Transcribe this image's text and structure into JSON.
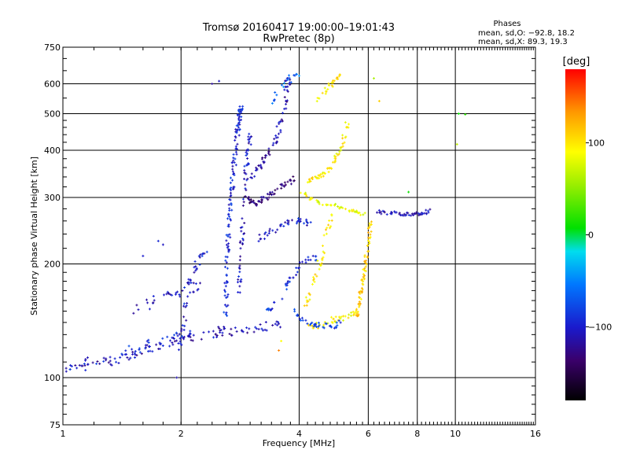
{
  "chart_data": {
    "type": "scatter",
    "title": "Tromsø 20160417 19:00:00–19:01:43",
    "subtitle": "RwPretec (8p)",
    "xlabel": "Frequency [MHz]",
    "ylabel": "Stationary phase Virtual Height [km]",
    "x_scale": "log",
    "y_scale": "log",
    "xlim": [
      1,
      16
    ],
    "ylim": [
      75,
      750
    ],
    "x_ticks": [
      "1",
      "2",
      "4",
      "6",
      "8",
      "10",
      "16"
    ],
    "x_tick_values": [
      1,
      2,
      4,
      6,
      8,
      10,
      16
    ],
    "y_ticks": [
      "75",
      "100",
      "200",
      "300",
      "400",
      "500",
      "600",
      "750"
    ],
    "y_tick_values": [
      75,
      100,
      200,
      300,
      400,
      500,
      600,
      750
    ],
    "grid": true,
    "stats": {
      "header": "Phases",
      "line1": "mean, sd,O: −92.8, 18.2",
      "line2": "mean, sd,X:  89.3, 19.3"
    },
    "colorbar": {
      "label": "[deg]",
      "range": [
        -180,
        180
      ],
      "ticks": [
        "100",
        "0",
        "−100"
      ],
      "tick_values": [
        100,
        0,
        -100
      ]
    },
    "traces": [
      {
        "name": "",
        "phase": -110,
        "spread": 0.05,
        "density": 12,
        "points": [
          [
            1.0,
            104
          ],
          [
            1.2,
            108
          ],
          [
            1.4,
            113
          ],
          [
            1.6,
            118
          ],
          [
            1.8,
            122
          ],
          [
            2.0,
            126
          ],
          [
            2.2,
            129
          ],
          [
            2.5,
            132
          ],
          [
            2.8,
            134
          ],
          [
            3.2,
            136
          ],
          [
            3.6,
            137
          ]
        ]
      },
      {
        "name": "",
        "phase": -95,
        "spread": 0.06,
        "density": 10,
        "points": [
          [
            1.05,
            106
          ],
          [
            1.3,
            112
          ],
          [
            1.6,
            120
          ],
          [
            1.9,
            127
          ],
          [
            2.1,
            131
          ]
        ]
      },
      {
        "name": "",
        "phase": -105,
        "spread": 0.05,
        "density": 8,
        "points": [
          [
            1.5,
            150
          ],
          [
            1.7,
            158
          ],
          [
            1.9,
            166
          ],
          [
            2.1,
            173
          ],
          [
            2.3,
            178
          ]
        ]
      },
      {
        "name": "",
        "phase": -100,
        "spread": 0.03,
        "density": 10,
        "points": [
          [
            2.0,
            120
          ],
          [
            2.05,
            150
          ],
          [
            2.1,
            180
          ],
          [
            2.2,
            200
          ],
          [
            2.3,
            215
          ]
        ]
      },
      {
        "name": "",
        "phase": -95,
        "spread": 0.025,
        "density": 22,
        "points": [
          [
            2.6,
            145
          ],
          [
            2.62,
            200
          ],
          [
            2.65,
            260
          ],
          [
            2.7,
            320
          ],
          [
            2.75,
            400
          ],
          [
            2.8,
            470
          ],
          [
            2.85,
            520
          ]
        ]
      },
      {
        "name": "",
        "phase": -105,
        "spread": 0.025,
        "density": 16,
        "points": [
          [
            2.8,
            160
          ],
          [
            2.85,
            220
          ],
          [
            2.9,
            300
          ],
          [
            2.95,
            380
          ],
          [
            3.0,
            440
          ]
        ]
      },
      {
        "name": "",
        "phase": -130,
        "spread": 0.03,
        "density": 14,
        "points": [
          [
            2.9,
            300
          ],
          [
            3.1,
            290
          ],
          [
            3.3,
            300
          ],
          [
            3.6,
            320
          ],
          [
            3.9,
            340
          ]
        ]
      },
      {
        "name": "",
        "phase": -115,
        "spread": 0.03,
        "density": 14,
        "points": [
          [
            3.0,
            340
          ],
          [
            3.2,
            370
          ],
          [
            3.4,
            400
          ],
          [
            3.6,
            470
          ],
          [
            3.7,
            560
          ],
          [
            3.75,
            630
          ]
        ]
      },
      {
        "name": "",
        "phase": -100,
        "spread": 0.03,
        "density": 10,
        "points": [
          [
            3.1,
            230
          ],
          [
            3.4,
            245
          ],
          [
            3.7,
            255
          ],
          [
            4.0,
            260
          ],
          [
            4.3,
            255
          ]
        ]
      },
      {
        "name": "",
        "phase": -90,
        "spread": 0.04,
        "density": 10,
        "points": [
          [
            3.3,
            150
          ],
          [
            3.5,
            160
          ],
          [
            3.8,
            180
          ],
          [
            4.1,
            200
          ],
          [
            4.4,
            210
          ]
        ]
      },
      {
        "name": "",
        "phase": 95,
        "spread": 0.025,
        "density": 14,
        "points": [
          [
            4.2,
            330
          ],
          [
            4.5,
            340
          ],
          [
            4.8,
            360
          ],
          [
            5.1,
            400
          ],
          [
            5.3,
            470
          ]
        ]
      },
      {
        "name": "",
        "phase": 85,
        "spread": 0.02,
        "density": 12,
        "points": [
          [
            4.0,
            310
          ],
          [
            4.5,
            290
          ],
          [
            5.0,
            285
          ],
          [
            5.5,
            275
          ],
          [
            5.9,
            270
          ]
        ]
      },
      {
        "name": "",
        "phase": 100,
        "spread": 0.025,
        "density": 10,
        "points": [
          [
            4.1,
            150
          ],
          [
            4.3,
            170
          ],
          [
            4.5,
            200
          ],
          [
            4.7,
            240
          ],
          [
            4.9,
            280
          ]
        ]
      },
      {
        "name": "",
        "phase": 110,
        "spread": 0.02,
        "density": 14,
        "points": [
          [
            5.6,
            145
          ],
          [
            5.7,
            160
          ],
          [
            5.8,
            180
          ],
          [
            5.9,
            200
          ],
          [
            6.0,
            230
          ],
          [
            6.1,
            260
          ]
        ]
      },
      {
        "name": "",
        "phase": 90,
        "spread": 0.03,
        "density": 10,
        "points": [
          [
            4.2,
            135
          ],
          [
            4.5,
            138
          ],
          [
            4.9,
            142
          ],
          [
            5.3,
            145
          ],
          [
            5.6,
            148
          ]
        ]
      },
      {
        "name": "",
        "phase": -85,
        "spread": 0.03,
        "density": 10,
        "points": [
          [
            3.9,
            150
          ],
          [
            4.1,
            140
          ],
          [
            4.4,
            138
          ],
          [
            4.8,
            137
          ],
          [
            5.2,
            140
          ]
        ]
      },
      {
        "name": "",
        "phase": -110,
        "spread": 0.02,
        "density": 10,
        "points": [
          [
            6.3,
            275
          ],
          [
            6.8,
            273
          ],
          [
            7.3,
            272
          ],
          [
            7.8,
            271
          ],
          [
            8.2,
            272
          ],
          [
            8.6,
            276
          ]
        ]
      },
      {
        "name": "",
        "phase": 100,
        "spread": 0.03,
        "density": 8,
        "points": [
          [
            4.5,
            540
          ],
          [
            4.7,
            580
          ],
          [
            4.9,
            610
          ],
          [
            5.1,
            630
          ]
        ]
      },
      {
        "name": "",
        "phase": -60,
        "spread": 0.03,
        "density": 6,
        "points": [
          [
            3.4,
            540
          ],
          [
            3.6,
            590
          ],
          [
            3.8,
            620
          ],
          [
            4.0,
            640
          ]
        ]
      }
    ],
    "outliers": [
      [
        1.95,
        100,
        -110
      ],
      [
        1.6,
        210,
        -100
      ],
      [
        1.75,
        230,
        -95
      ],
      [
        1.8,
        225,
        -105
      ],
      [
        10.2,
        500,
        10
      ],
      [
        10.6,
        498,
        20
      ],
      [
        10.1,
        415,
        70
      ],
      [
        7.6,
        310,
        10
      ],
      [
        6.2,
        620,
        60
      ],
      [
        6.4,
        540,
        110
      ],
      [
        3.6,
        125,
        90
      ],
      [
        3.55,
        118,
        140
      ],
      [
        2.4,
        600,
        -120
      ],
      [
        2.5,
        610,
        -105
      ]
    ]
  }
}
